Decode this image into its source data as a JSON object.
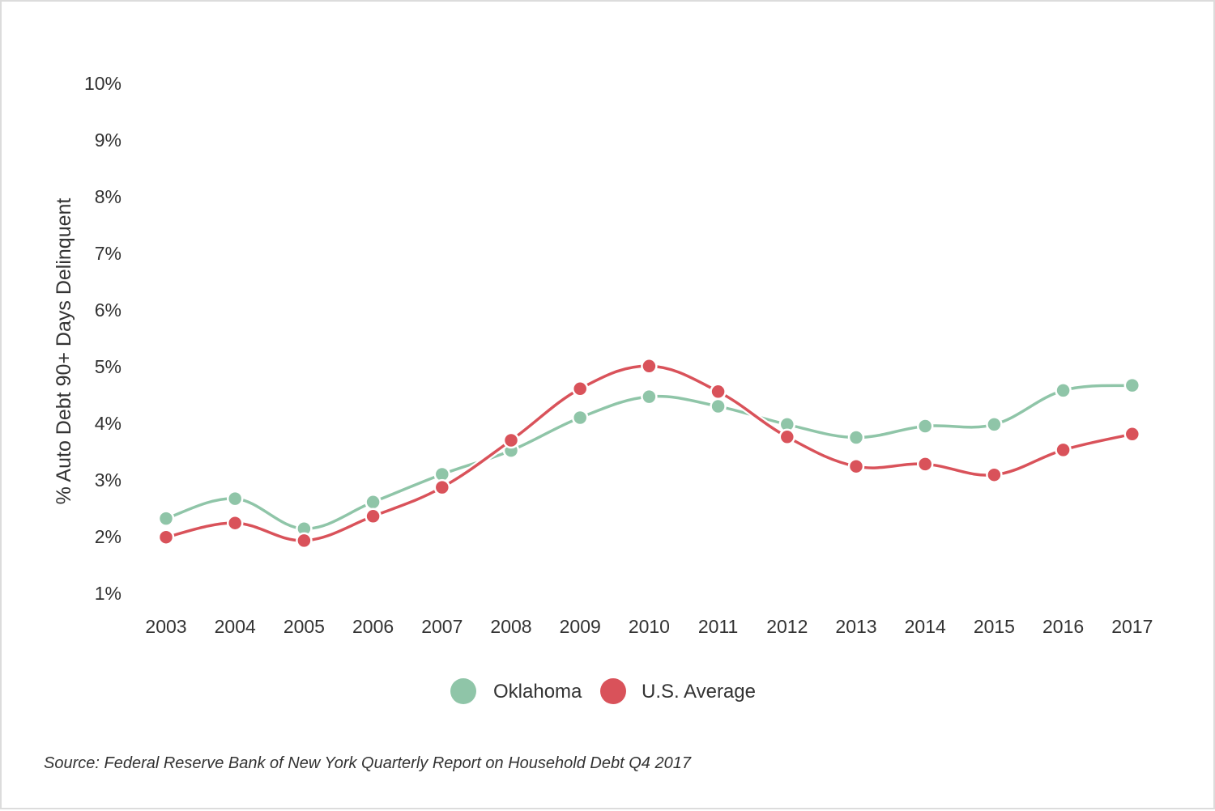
{
  "chart_data": {
    "type": "line",
    "ylabel": "% Auto Debt 90+ Days Delinquent",
    "xlabel": "",
    "categories": [
      "2003",
      "2004",
      "2005",
      "2006",
      "2007",
      "2008",
      "2009",
      "2010",
      "2011",
      "2012",
      "2013",
      "2014",
      "2015",
      "2016",
      "2017"
    ],
    "yticks": [
      "1%",
      "2%",
      "3%",
      "4%",
      "5%",
      "6%",
      "7%",
      "8%",
      "9%",
      "10%"
    ],
    "ylim": [
      1,
      10
    ],
    "grid": false,
    "legend_position": "bottom",
    "series": [
      {
        "name": "Oklahoma",
        "color": "#8fc5a8",
        "values": [
          2.32,
          2.67,
          2.14,
          2.61,
          3.1,
          3.52,
          4.1,
          4.47,
          4.3,
          3.98,
          3.75,
          3.95,
          3.98,
          4.58,
          4.67
        ]
      },
      {
        "name": "U.S. Average",
        "color": "#d9525a",
        "values": [
          1.99,
          2.24,
          1.93,
          2.36,
          2.87,
          3.7,
          4.61,
          5.01,
          4.56,
          3.76,
          3.24,
          3.28,
          3.09,
          3.53,
          3.81
        ]
      }
    ]
  },
  "source_text": "Source: Federal Reserve Bank of New York Quarterly Report on Household Debt Q4 2017"
}
